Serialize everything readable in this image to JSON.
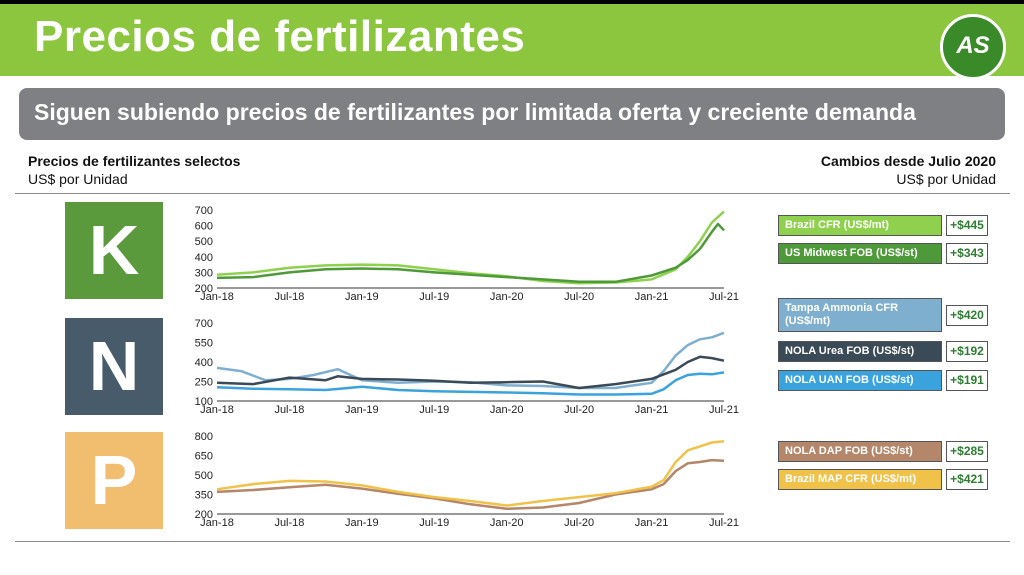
{
  "header": {
    "title": "Precios de fertilizantes",
    "logo_text": "AS",
    "subtitle": "Siguen subiendo precios de fertilizantes por limitada oferta y creciente demanda"
  },
  "left_header": {
    "title": "Precios de fertilizantes selectos",
    "unit": "US$ por Unidad"
  },
  "right_header": {
    "title": "Cambios desde Julio 2020",
    "unit": "US$ por Unidad"
  },
  "panels": [
    {
      "letter": "K",
      "color": "#5a9a3c"
    },
    {
      "letter": "N",
      "color": "#475b6b"
    },
    {
      "letter": "P",
      "color": "#f1bd6f"
    }
  ],
  "legend": [
    {
      "label": "Brazil CFR (US$/mt)",
      "change": "+$445",
      "color": "#8fd14f"
    },
    {
      "label": "US Midwest FOB (US$/st)",
      "change": "+$343",
      "color": "#4e9a3a"
    },
    {
      "label": "Tampa Ammonia CFR (US$/mt)",
      "change": "+$420",
      "color": "#7fafcf"
    },
    {
      "label": "NOLA Urea FOB (US$/st)",
      "change": "+$192",
      "color": "#3b4a57"
    },
    {
      "label": "NOLA UAN FOB (US$/st)",
      "change": "+$191",
      "color": "#3aa3de"
    },
    {
      "label": "NOLA DAP FOB (US$/st)",
      "change": "+$285",
      "color": "#b4866a"
    },
    {
      "label": "Brazil MAP CFR (US$/mt)",
      "change": "+$421",
      "color": "#f0c24a"
    }
  ],
  "chart_data": [
    {
      "type": "line",
      "title": "K",
      "categories": [
        "Jan-18",
        "Jul-18",
        "Jan-19",
        "Jul-19",
        "Jan-20",
        "Jul-20",
        "Jan-21",
        "Jul-21"
      ],
      "ylim": [
        200,
        700
      ],
      "yticks": [
        200,
        300,
        400,
        500,
        600,
        700
      ],
      "series": [
        {
          "name": "Brazil CFR (US$/mt)",
          "color": "#8fd14f",
          "x": [
            0,
            3,
            6,
            9,
            12,
            15,
            18,
            21,
            24,
            27,
            30,
            33,
            36,
            38,
            39,
            40,
            41,
            42
          ],
          "values": [
            285,
            300,
            330,
            345,
            350,
            345,
            320,
            295,
            275,
            245,
            230,
            235,
            255,
            320,
            400,
            500,
            620,
            690
          ]
        },
        {
          "name": "US Midwest FOB (US$/st)",
          "color": "#4e9a3a",
          "x": [
            0,
            3,
            6,
            9,
            12,
            15,
            18,
            21,
            24,
            27,
            30,
            33,
            36,
            38,
            39,
            40,
            41,
            41.5,
            42
          ],
          "values": [
            265,
            270,
            300,
            320,
            325,
            320,
            300,
            285,
            270,
            255,
            240,
            240,
            280,
            330,
            380,
            450,
            560,
            610,
            570
          ]
        }
      ]
    },
    {
      "type": "line",
      "title": "N",
      "categories": [
        "Jan-18",
        "Jul-18",
        "Jan-19",
        "Jul-19",
        "Jan-20",
        "Jul-20",
        "Jan-21",
        "Jul-21"
      ],
      "ylim": [
        100,
        700
      ],
      "yticks": [
        100,
        250,
        400,
        550,
        700
      ],
      "series": [
        {
          "name": "Tampa Ammonia CFR (US$/mt)",
          "color": "#7fafcf",
          "x": [
            0,
            2,
            4,
            6,
            8,
            10,
            12,
            15,
            18,
            21,
            24,
            27,
            30,
            33,
            36,
            37,
            38,
            39,
            40,
            41,
            42
          ],
          "values": [
            355,
            330,
            260,
            270,
            300,
            345,
            260,
            240,
            250,
            245,
            220,
            215,
            200,
            200,
            240,
            330,
            450,
            530,
            575,
            590,
            625
          ]
        },
        {
          "name": "NOLA Urea FOB (US$/st)",
          "color": "#3b4a57",
          "x": [
            0,
            3,
            6,
            9,
            10,
            12,
            15,
            18,
            21,
            24,
            27,
            30,
            33,
            36,
            38,
            39,
            40,
            41,
            42
          ],
          "values": [
            240,
            230,
            280,
            260,
            290,
            270,
            265,
            255,
            240,
            245,
            250,
            200,
            230,
            270,
            340,
            400,
            440,
            430,
            410
          ]
        },
        {
          "name": "NOLA UAN FOB (US$/st)",
          "color": "#3aa3de",
          "x": [
            0,
            3,
            6,
            9,
            12,
            15,
            18,
            21,
            24,
            27,
            30,
            33,
            36,
            37,
            38,
            39,
            40,
            41,
            42
          ],
          "values": [
            205,
            195,
            190,
            185,
            210,
            185,
            175,
            170,
            165,
            160,
            150,
            150,
            155,
            190,
            260,
            300,
            310,
            305,
            320
          ]
        }
      ]
    },
    {
      "type": "line",
      "title": "P",
      "categories": [
        "Jan-18",
        "Jul-18",
        "Jan-19",
        "Jul-19",
        "Jan-20",
        "Jul-20",
        "Jan-21",
        "Jul-21"
      ],
      "ylim": [
        200,
        800
      ],
      "yticks": [
        200,
        350,
        500,
        650,
        800
      ],
      "series": [
        {
          "name": "NOLA DAP FOB (US$/st)",
          "color": "#b4866a",
          "x": [
            0,
            3,
            6,
            9,
            12,
            15,
            18,
            21,
            24,
            27,
            30,
            33,
            36,
            37,
            38,
            39,
            40,
            41,
            42
          ],
          "values": [
            370,
            385,
            405,
            425,
            395,
            355,
            320,
            275,
            240,
            250,
            285,
            350,
            390,
            430,
            530,
            590,
            600,
            615,
            610
          ]
        },
        {
          "name": "Brazil MAP CFR (US$/mt)",
          "color": "#f0c24a",
          "x": [
            0,
            3,
            6,
            9,
            12,
            15,
            18,
            21,
            24,
            27,
            30,
            33,
            36,
            37,
            38,
            39,
            40,
            41,
            42
          ],
          "values": [
            390,
            430,
            455,
            450,
            420,
            370,
            330,
            300,
            265,
            300,
            330,
            360,
            410,
            460,
            600,
            690,
            720,
            750,
            760
          ]
        }
      ]
    }
  ]
}
